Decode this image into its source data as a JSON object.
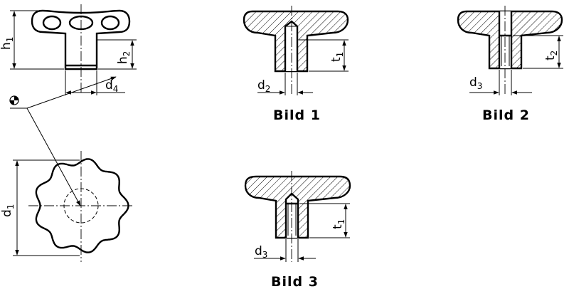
{
  "labels": {
    "h1": {
      "base": "h",
      "sub": "1"
    },
    "h2": {
      "base": "h",
      "sub": "2"
    },
    "d4": {
      "base": "d",
      "sub": "4"
    },
    "d1": {
      "base": "d",
      "sub": "1"
    },
    "d2": {
      "base": "d",
      "sub": "2"
    },
    "t1_fig1": {
      "base": "t",
      "sub": "1"
    },
    "d3_fig2": {
      "base": "d",
      "sub": "3"
    },
    "t2": {
      "base": "t",
      "sub": "2"
    },
    "d3_fig3": {
      "base": "d",
      "sub": "3"
    },
    "t1_fig3": {
      "base": "t",
      "sub": "1"
    }
  },
  "captions": {
    "bild1": "Bild 1",
    "bild2": "Bild 2",
    "bild3": "Bild 3"
  },
  "symbols": {
    "material_mark": "material-symbol-icon"
  }
}
